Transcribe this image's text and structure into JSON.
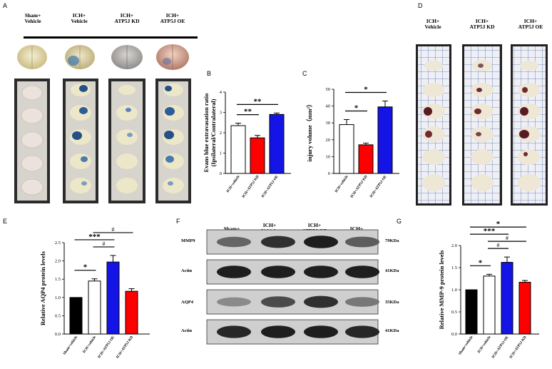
{
  "panel_letters": {
    "A": "A",
    "B": "B",
    "C": "C",
    "D": "D",
    "E": "E",
    "F": "F",
    "G": "G"
  },
  "panelA": {
    "groups": [
      "Sham+\nVehicle",
      "ICH+\nVehicle",
      "ICH+\nATP5J KD",
      "ICH+\nATP5J OE"
    ]
  },
  "panelD": {
    "groups": [
      "ICH+\nVehicle",
      "ICH+\nATP5J KD",
      "ICH+\nATP5J OE"
    ]
  },
  "panelF": {
    "groups": [
      "Sham+\nVehicle",
      "ICH+\nVehicle",
      "ICH+\nATP5J OE",
      "ICH+\nATP5J KD"
    ],
    "rows": [
      {
        "label": "MMP9",
        "kda": "79KDa"
      },
      {
        "label": "Actin",
        "kda": "41KDa"
      },
      {
        "label": "AQP4",
        "kda": "35KDa"
      },
      {
        "label": "Actin",
        "kda": "41KDa"
      }
    ],
    "intensity": [
      [
        0.55,
        0.85,
        0.95,
        0.6
      ],
      [
        0.95,
        0.95,
        0.95,
        0.95
      ],
      [
        0.35,
        0.7,
        0.85,
        0.45
      ],
      [
        0.9,
        0.95,
        0.95,
        0.9
      ]
    ]
  },
  "colors": {
    "black": "#000000",
    "white": "#ffffff",
    "red": "#ff0000",
    "blue": "#1414e6"
  },
  "chart_data": [
    {
      "id": "B",
      "type": "bar",
      "ylabel": "Evans blue extravasation ratio\n(Ipsilateral/Contralateral)",
      "categories": [
        "ICH+vehicle",
        "ICH+ATP5J KD",
        "ICH+ATP5J OE"
      ],
      "values": [
        2.35,
        1.75,
        2.9
      ],
      "errors": [
        0.12,
        0.12,
        0.07
      ],
      "bar_colors": [
        "#ffffff",
        "#ff0000",
        "#1414e6"
      ],
      "ylim": [
        0,
        4
      ],
      "yticks": [
        0,
        1,
        2,
        3,
        4
      ],
      "significance": [
        {
          "from": 0,
          "to": 1,
          "label": "**"
        },
        {
          "from": 0,
          "to": 2,
          "label": "**"
        }
      ]
    },
    {
      "id": "C",
      "type": "bar",
      "ylabel": "injury volume（mm³）",
      "categories": [
        "ICH+vehicle",
        "ICH+ATP5J KD",
        "ICH+ATP5J OE"
      ],
      "values": [
        29,
        17,
        39.5
      ],
      "errors": [
        3,
        1,
        3.5
      ],
      "bar_colors": [
        "#ffffff",
        "#ff0000",
        "#1414e6"
      ],
      "ylim": [
        0,
        50
      ],
      "yticks": [
        0,
        10,
        20,
        30,
        40,
        50
      ],
      "significance": [
        {
          "from": 0,
          "to": 1,
          "label": "*"
        },
        {
          "from": 0,
          "to": 2,
          "label": "*"
        }
      ]
    },
    {
      "id": "E",
      "type": "bar",
      "ylabel": "Relative AQP4 protein levels",
      "categories": [
        "Sham+vehicle",
        "ICH+vehicle",
        "ICH+ATP5J OE",
        "ICH+ATP5J KD"
      ],
      "values": [
        1.0,
        1.45,
        1.97,
        1.17
      ],
      "errors": [
        0,
        0.06,
        0.18,
        0.07
      ],
      "bar_colors": [
        "#000000",
        "#ffffff",
        "#1414e6",
        "#ff0000"
      ],
      "ylim": [
        0,
        2.5
      ],
      "yticks": [
        0.0,
        0.5,
        1.0,
        1.5,
        2.0,
        2.5
      ],
      "significance": [
        {
          "from": 0,
          "to": 1,
          "label": "*"
        },
        {
          "from": 0,
          "to": 2,
          "label": "***"
        },
        {
          "from": 1,
          "to": 2,
          "label": "#"
        },
        {
          "from": 1,
          "to": 3,
          "label": "#"
        }
      ]
    },
    {
      "id": "G",
      "type": "bar",
      "ylabel": "Relative MMP-9 protein levels",
      "categories": [
        "Sham+vehicle",
        "ICH+vehicle",
        "ICH+ATP5J OE",
        "ICH+ATP5J KD"
      ],
      "values": [
        1.0,
        1.31,
        1.62,
        1.17
      ],
      "errors": [
        0,
        0.04,
        0.12,
        0.04
      ],
      "bar_colors": [
        "#000000",
        "#ffffff",
        "#1414e6",
        "#ff0000"
      ],
      "ylim": [
        0,
        2.0
      ],
      "yticks": [
        0.0,
        0.5,
        1.0,
        1.5,
        2.0
      ],
      "significance": [
        {
          "from": 0,
          "to": 1,
          "label": "*"
        },
        {
          "from": 1,
          "to": 2,
          "label": "#"
        },
        {
          "from": 1,
          "to": 3,
          "label": "#"
        },
        {
          "from": 0,
          "to": 2,
          "label": "***"
        },
        {
          "from": 0,
          "to": 3,
          "label": "*"
        }
      ]
    }
  ]
}
